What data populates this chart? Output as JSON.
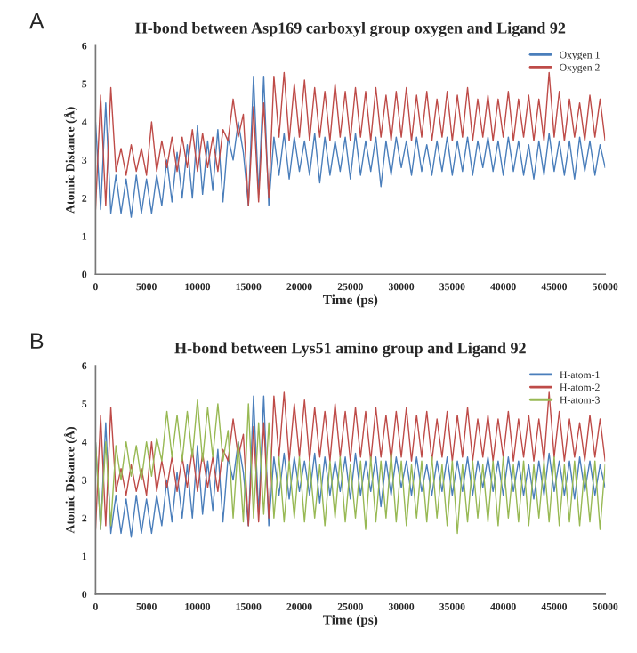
{
  "chart_data": [
    {
      "type": "line",
      "title": "H-bond between Asp169 carboxyl group oxygen and Ligand 92",
      "xlabel": "Time (ps)",
      "ylabel": "Atomic Distance (Å)",
      "annotations": [
        "A"
      ],
      "x": [
        0,
        500,
        1000,
        1500,
        2000,
        2500,
        3000,
        3500,
        4000,
        4500,
        5000,
        5500,
        6000,
        6500,
        7000,
        7500,
        8000,
        8500,
        9000,
        9500,
        10000,
        10500,
        11000,
        11500,
        12000,
        12500,
        13000,
        13500,
        14000,
        14500,
        15000,
        15500,
        16000,
        16500,
        17000,
        17500,
        18000,
        18500,
        19000,
        19500,
        20000,
        20500,
        21000,
        21500,
        22000,
        22500,
        23000,
        23500,
        24000,
        24500,
        25000,
        25500,
        26000,
        26500,
        27000,
        27500,
        28000,
        28500,
        29000,
        29500,
        30000,
        30500,
        31000,
        31500,
        32000,
        32500,
        33000,
        33500,
        34000,
        34500,
        35000,
        35500,
        36000,
        36500,
        37000,
        37500,
        38000,
        38500,
        39000,
        39500,
        40000,
        40500,
        41000,
        41500,
        42000,
        42500,
        43000,
        43500,
        44000,
        44500,
        45000,
        45500,
        46000,
        46500,
        47000,
        47500,
        48000,
        48500,
        49000,
        49500,
        50000
      ],
      "xlim": [
        0,
        50000
      ],
      "xticks": [
        0,
        5000,
        10000,
        15000,
        20000,
        25000,
        30000,
        35000,
        40000,
        45000,
        50000
      ],
      "ylim": [
        0,
        6
      ],
      "yticks": [
        0,
        1,
        2,
        3,
        4,
        5,
        6
      ],
      "legend": "top right",
      "grid": false,
      "marker": "none",
      "line_style": "solid",
      "series": [
        {
          "name": "Oxygen 1",
          "color": "#4a7ebb",
          "values": [
            4.0,
            1.7,
            4.5,
            1.6,
            2.6,
            1.6,
            2.5,
            1.5,
            2.6,
            1.6,
            2.5,
            1.6,
            2.6,
            1.8,
            3.0,
            1.9,
            3.2,
            2.0,
            3.4,
            2.0,
            3.9,
            2.1,
            3.5,
            2.2,
            3.8,
            1.9,
            3.6,
            3.0,
            4.0,
            3.2,
            1.8,
            5.2,
            2.1,
            5.2,
            1.8,
            3.6,
            2.6,
            3.7,
            2.5,
            3.6,
            2.7,
            3.5,
            2.6,
            3.7,
            2.4,
            3.6,
            2.6,
            3.5,
            2.7,
            3.6,
            2.5,
            3.7,
            2.6,
            3.5,
            2.7,
            3.6,
            2.3,
            3.5,
            2.6,
            3.6,
            2.8,
            3.5,
            2.6,
            3.6,
            2.7,
            3.4,
            2.6,
            3.5,
            2.7,
            3.6,
            2.6,
            3.5,
            2.7,
            3.6,
            2.6,
            3.5,
            2.8,
            3.6,
            2.7,
            3.5,
            2.6,
            3.6,
            2.7,
            3.5,
            2.6,
            3.4,
            2.5,
            3.5,
            2.6,
            3.7,
            2.7,
            3.5,
            2.6,
            3.5,
            2.5,
            3.6,
            2.7,
            3.5,
            2.6,
            3.4,
            2.8
          ]
        },
        {
          "name": "Oxygen 2",
          "color": "#be4b48",
          "values": [
            1.7,
            4.7,
            1.8,
            4.9,
            2.7,
            3.3,
            2.6,
            3.4,
            2.7,
            3.3,
            2.6,
            4.0,
            2.7,
            3.5,
            2.8,
            3.6,
            2.7,
            3.6,
            2.8,
            3.8,
            2.7,
            3.7,
            2.8,
            3.6,
            2.7,
            3.8,
            3.5,
            4.6,
            3.6,
            4.2,
            1.8,
            4.4,
            1.9,
            4.5,
            2.0,
            5.2,
            3.6,
            5.3,
            3.5,
            5.0,
            3.6,
            5.1,
            3.5,
            4.9,
            3.6,
            4.8,
            3.5,
            5.0,
            3.6,
            4.8,
            3.5,
            4.9,
            3.6,
            4.8,
            3.5,
            4.9,
            3.6,
            4.7,
            3.5,
            4.8,
            3.6,
            4.9,
            3.5,
            4.7,
            3.6,
            4.8,
            3.5,
            4.6,
            3.6,
            4.8,
            3.5,
            4.7,
            3.6,
            4.9,
            3.5,
            4.6,
            3.6,
            4.7,
            3.5,
            4.6,
            3.6,
            4.8,
            3.5,
            4.6,
            3.6,
            4.7,
            3.5,
            4.6,
            3.5,
            5.3,
            3.6,
            4.8,
            3.5,
            4.6,
            3.6,
            4.5,
            3.5,
            4.7,
            3.6,
            4.6,
            3.5
          ]
        }
      ]
    },
    {
      "type": "line",
      "title": "H-bond between Lys51 amino group and Ligand 92",
      "xlabel": "Time (ps)",
      "ylabel": "Atomic Distance (Å)",
      "annotations": [
        "B"
      ],
      "x": [
        0,
        500,
        1000,
        1500,
        2000,
        2500,
        3000,
        3500,
        4000,
        4500,
        5000,
        5500,
        6000,
        6500,
        7000,
        7500,
        8000,
        8500,
        9000,
        9500,
        10000,
        10500,
        11000,
        11500,
        12000,
        12500,
        13000,
        13500,
        14000,
        14500,
        15000,
        15500,
        16000,
        16500,
        17000,
        17500,
        18000,
        18500,
        19000,
        19500,
        20000,
        20500,
        21000,
        21500,
        22000,
        22500,
        23000,
        23500,
        24000,
        24500,
        25000,
        25500,
        26000,
        26500,
        27000,
        27500,
        28000,
        28500,
        29000,
        29500,
        30000,
        30500,
        31000,
        31500,
        32000,
        32500,
        33000,
        33500,
        34000,
        34500,
        35000,
        35500,
        36000,
        36500,
        37000,
        37500,
        38000,
        38500,
        39000,
        39500,
        40000,
        40500,
        41000,
        41500,
        42000,
        42500,
        43000,
        43500,
        44000,
        44500,
        45000,
        45500,
        46000,
        46500,
        47000,
        47500,
        48000,
        48500,
        49000,
        49500,
        50000
      ],
      "xlim": [
        0,
        50000
      ],
      "xticks": [
        0,
        5000,
        10000,
        15000,
        20000,
        25000,
        30000,
        35000,
        40000,
        45000,
        50000
      ],
      "ylim": [
        0,
        6
      ],
      "yticks": [
        0,
        1,
        2,
        3,
        4,
        5,
        6
      ],
      "legend": "top right",
      "grid": false,
      "marker": "none",
      "line_style": "solid",
      "series": [
        {
          "name": "H-atom-1",
          "color": "#4a7ebb",
          "values": [
            4.0,
            1.7,
            4.5,
            1.6,
            2.6,
            1.6,
            2.5,
            1.5,
            2.6,
            1.6,
            2.5,
            1.6,
            2.6,
            1.8,
            3.0,
            1.9,
            3.2,
            2.0,
            3.4,
            2.0,
            3.9,
            2.1,
            3.5,
            2.2,
            3.8,
            1.9,
            3.6,
            3.0,
            4.0,
            3.2,
            1.8,
            5.2,
            2.1,
            5.2,
            1.8,
            3.6,
            2.6,
            3.7,
            2.5,
            3.6,
            2.7,
            3.5,
            2.6,
            3.7,
            2.4,
            3.6,
            2.6,
            3.5,
            2.7,
            3.6,
            2.5,
            3.7,
            2.6,
            3.5,
            2.7,
            3.6,
            2.3,
            3.5,
            2.6,
            3.6,
            2.8,
            3.5,
            2.6,
            3.6,
            2.7,
            3.4,
            2.6,
            3.5,
            2.7,
            3.6,
            2.6,
            3.5,
            2.7,
            3.6,
            2.6,
            3.5,
            2.8,
            3.6,
            2.7,
            3.5,
            2.6,
            3.6,
            2.7,
            3.5,
            2.6,
            3.4,
            2.5,
            3.5,
            2.6,
            3.7,
            2.7,
            3.5,
            2.6,
            3.5,
            2.5,
            3.6,
            2.7,
            3.5,
            2.6,
            3.4,
            2.8
          ]
        },
        {
          "name": "H-atom-2",
          "color": "#be4b48",
          "values": [
            1.7,
            4.7,
            1.8,
            4.9,
            2.7,
            3.3,
            2.6,
            3.4,
            2.7,
            3.3,
            2.6,
            4.0,
            2.7,
            3.5,
            2.8,
            3.6,
            2.7,
            3.6,
            2.8,
            3.8,
            2.7,
            3.7,
            2.8,
            3.6,
            2.7,
            3.8,
            3.5,
            4.6,
            3.6,
            4.2,
            1.8,
            4.4,
            1.9,
            4.5,
            2.0,
            5.2,
            3.6,
            5.3,
            3.5,
            5.0,
            3.6,
            5.1,
            3.5,
            4.9,
            3.6,
            4.8,
            3.5,
            5.0,
            3.6,
            4.8,
            3.5,
            4.9,
            3.6,
            4.8,
            3.5,
            4.9,
            3.6,
            4.7,
            3.5,
            4.8,
            3.6,
            4.9,
            3.5,
            4.7,
            3.6,
            4.8,
            3.5,
            4.6,
            3.6,
            4.8,
            3.5,
            4.7,
            3.6,
            4.9,
            3.5,
            4.6,
            3.6,
            4.7,
            3.5,
            4.6,
            3.6,
            4.8,
            3.5,
            4.6,
            3.6,
            4.7,
            3.5,
            4.6,
            3.5,
            5.3,
            3.6,
            4.8,
            3.5,
            4.6,
            3.6,
            4.5,
            3.5,
            4.7,
            3.6,
            4.6,
            3.5
          ]
        },
        {
          "name": "H-atom-3",
          "color": "#98b954",
          "values": [
            4.0,
            1.7,
            4.0,
            1.8,
            3.9,
            3.0,
            4.0,
            3.1,
            3.9,
            3.0,
            4.0,
            3.1,
            4.1,
            3.5,
            4.8,
            3.6,
            4.7,
            3.5,
            4.8,
            3.6,
            5.1,
            3.5,
            4.9,
            3.6,
            5.0,
            3.5,
            4.3,
            2.0,
            4.0,
            1.9,
            5.0,
            2.0,
            4.5,
            2.1,
            4.5,
            2.0,
            3.6,
            1.9,
            3.5,
            2.0,
            3.6,
            1.9,
            3.5,
            2.0,
            3.4,
            1.8,
            3.5,
            2.0,
            3.6,
            1.9,
            3.4,
            2.0,
            3.5,
            1.7,
            3.6,
            1.9,
            3.5,
            2.0,
            3.7,
            1.9,
            3.5,
            1.8,
            3.4,
            2.0,
            3.5,
            1.9,
            3.6,
            2.0,
            3.4,
            1.8,
            3.5,
            1.6,
            3.4,
            1.9,
            3.5,
            2.0,
            3.4,
            1.9,
            3.5,
            1.8,
            3.6,
            2.0,
            3.4,
            1.9,
            3.5,
            1.8,
            3.4,
            2.0,
            3.5,
            1.9,
            3.6,
            1.8,
            3.4,
            1.9,
            3.5,
            1.8,
            3.4,
            1.9,
            3.5,
            1.7,
            3.4
          ]
        }
      ]
    }
  ]
}
